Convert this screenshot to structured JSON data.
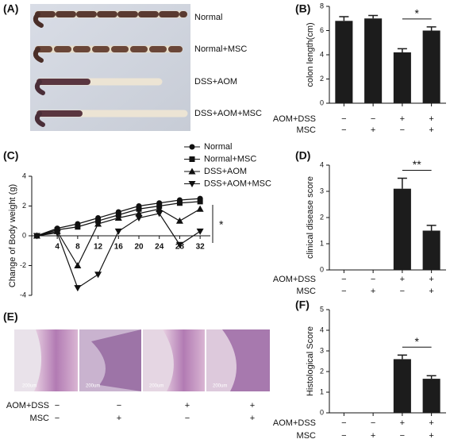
{
  "panel_labels": [
    "(A)",
    "(B)",
    "(C)",
    "(D)",
    "(E)",
    "(F)"
  ],
  "photo_a": {
    "labels": [
      "Normal",
      "Normal+MSC",
      "DSS+AOM",
      "DSS+AOM+MSC"
    ]
  },
  "photo_e": {
    "scale_labels": [
      "200um",
      "200um",
      "200um",
      "200um"
    ],
    "treatments": [
      {
        "name": "AOM+DSS",
        "signs": [
          "−",
          "−",
          "+",
          "+"
        ]
      },
      {
        "name": "MSC",
        "signs": [
          "−",
          "+",
          "−",
          "+"
        ]
      }
    ]
  },
  "chart_data": [
    {
      "type": "bar",
      "ylabel": "colon length(cm)",
      "ylim": [
        0,
        8
      ],
      "yticks": [
        0,
        2,
        4,
        6,
        8
      ],
      "color": "#1c1c1c",
      "categories": [
        null,
        null,
        null,
        null
      ],
      "values": [
        6.8,
        7.0,
        4.2,
        6.0
      ],
      "errors": [
        0.35,
        0.25,
        0.3,
        0.3
      ],
      "annotation": "*",
      "treatments": [
        {
          "name": "AOM+DSS",
          "signs": [
            "−",
            "−",
            "+",
            "+"
          ]
        },
        {
          "name": "MSC",
          "signs": [
            "−",
            "+",
            "−",
            "+"
          ]
        }
      ]
    },
    {
      "type": "line",
      "ylabel": "Change of Body weight (g)",
      "xlim": [
        -1,
        34
      ],
      "ylim": [
        -4,
        4
      ],
      "yticks": [
        -4,
        -2,
        0,
        2,
        4
      ],
      "xticks": [
        4,
        8,
        12,
        16,
        20,
        24,
        28,
        32
      ],
      "x": [
        0,
        4,
        8,
        12,
        16,
        20,
        24,
        28,
        32
      ],
      "annotation": "*",
      "color": "#111",
      "series": [
        {
          "name": "Normal",
          "marker": "circle",
          "values": [
            0,
            0.5,
            0.8,
            1.2,
            1.6,
            2.0,
            2.2,
            2.4,
            2.5
          ]
        },
        {
          "name": "Normal+MSC",
          "marker": "square",
          "values": [
            0,
            0.4,
            0.6,
            1.0,
            1.4,
            1.8,
            2.0,
            2.2,
            2.3
          ]
        },
        {
          "name": "DSS+AOM",
          "marker": "triangle-up",
          "values": [
            0,
            0.3,
            -2.0,
            0.8,
            1.2,
            1.5,
            1.8,
            1.0,
            1.8
          ]
        },
        {
          "name": "DSS+AOM+MSC",
          "marker": "triangle-down",
          "values": [
            0,
            0.2,
            -3.5,
            -2.6,
            0.3,
            1.2,
            1.5,
            -0.6,
            0.3
          ]
        }
      ]
    },
    {
      "type": "bar",
      "ylabel": "clinical disease score",
      "ylim": [
        0,
        4
      ],
      "yticks": [
        0,
        1,
        2,
        3,
        4
      ],
      "color": "#1c1c1c",
      "categories": [
        null,
        null,
        null,
        null
      ],
      "values": [
        0,
        0,
        3.1,
        1.5
      ],
      "errors": [
        0,
        0,
        0.4,
        0.2
      ],
      "annotation": "**",
      "treatments": [
        {
          "name": "AOM+DSS",
          "signs": [
            "−",
            "−",
            "+",
            "+"
          ]
        },
        {
          "name": "MSC",
          "signs": [
            "−",
            "+",
            "−",
            "+"
          ]
        }
      ]
    },
    {
      "type": "bar",
      "ylabel": "Histological Score",
      "ylim": [
        0,
        5
      ],
      "yticks": [
        0,
        1,
        2,
        3,
        4,
        5
      ],
      "color": "#1c1c1c",
      "categories": [
        null,
        null,
        null,
        null
      ],
      "values": [
        0,
        0,
        2.6,
        1.65
      ],
      "errors": [
        0,
        0,
        0.2,
        0.15
      ],
      "annotation": "*",
      "treatments": [
        {
          "name": "AOM+DSS",
          "signs": [
            "−",
            "−",
            "+",
            "+"
          ]
        },
        {
          "name": "MSC",
          "signs": [
            "−",
            "+",
            "−",
            "+"
          ]
        }
      ]
    }
  ]
}
